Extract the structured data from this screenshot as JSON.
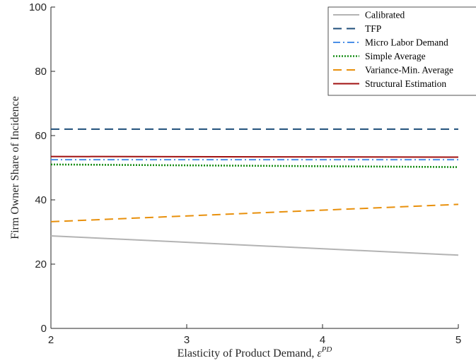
{
  "chart_data": {
    "type": "line",
    "title": "",
    "xlabel": "Elasticity of Product Demand, ",
    "xlabel_symbol": "ε",
    "xlabel_superscript": "PD",
    "ylabel": "Firm Owner Share of Incidence",
    "xlim": [
      2,
      5
    ],
    "ylim": [
      0,
      100
    ],
    "x_ticks": [
      "2",
      "3",
      "4",
      "5"
    ],
    "y_ticks": [
      "0",
      "20",
      "40",
      "60",
      "80",
      "100"
    ],
    "grid": false,
    "legend_position": "top-right",
    "x": [
      2,
      5
    ],
    "series": [
      {
        "name": "Calibrated",
        "values": [
          28.8,
          22.8
        ],
        "color": "#b3b3b3",
        "dash": "solid"
      },
      {
        "name": "TFP",
        "values": [
          62.0,
          62.0
        ],
        "color": "#1f4e79",
        "dash": "dashed"
      },
      {
        "name": "Micro Labor Demand",
        "values": [
          52.5,
          52.5
        ],
        "color": "#4a8fe7",
        "dash": "dashdot"
      },
      {
        "name": "Simple Average",
        "values": [
          51.0,
          50.2
        ],
        "color": "#1a8f1a",
        "dash": "dotted"
      },
      {
        "name": "Variance-Min. Average",
        "values": [
          33.2,
          38.6
        ],
        "color": "#e8900c",
        "dash": "dashed"
      },
      {
        "name": "Structural Estimation",
        "values": [
          53.5,
          53.3
        ],
        "color": "#a01010",
        "dash": "solid"
      }
    ]
  }
}
